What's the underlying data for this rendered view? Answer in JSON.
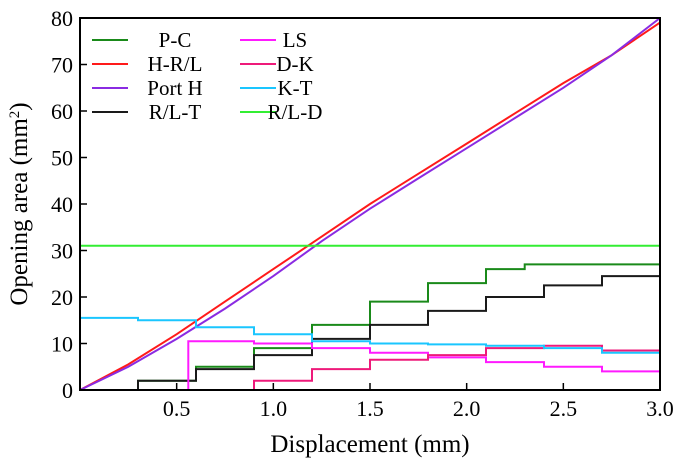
{
  "chart_data": {
    "type": "line",
    "xlabel": "Displacement (mm)",
    "ylabel_main": "Opening area (mm",
    "ylabel_sup": "2",
    "ylabel_tail": ")",
    "xlim": [
      0,
      3.0
    ],
    "ylim": [
      0,
      80
    ],
    "x_ticks": [
      0.5,
      1.0,
      1.5,
      2.0,
      2.5,
      3.0
    ],
    "x_tick_labels": [
      "0.5",
      "1.0",
      "1.5",
      "2.0",
      "2.5",
      "3.0"
    ],
    "y_ticks": [
      0,
      10,
      20,
      30,
      40,
      50,
      60,
      70,
      80
    ],
    "y_tick_labels": [
      "0",
      "10",
      "20",
      "30",
      "40",
      "50",
      "60",
      "70",
      "80"
    ],
    "grid": false,
    "legend_placement": "top-left",
    "series": [
      {
        "name": "P-C",
        "color": "#1a8a1a",
        "step": true,
        "x": [
          0,
          0.3,
          0.6,
          0.9,
          1.2,
          1.5,
          1.8,
          2.1,
          2.3,
          2.6,
          3.0
        ],
        "y": [
          0,
          2,
          5,
          9,
          14,
          19,
          23,
          26,
          27,
          27,
          27
        ]
      },
      {
        "name": "H-R/L",
        "color": "#ff1a1a",
        "step": false,
        "x": [
          0,
          0.25,
          0.5,
          0.75,
          1.0,
          1.25,
          1.5,
          1.75,
          2.0,
          2.25,
          2.5,
          2.75,
          3.0
        ],
        "y": [
          0,
          5.5,
          12,
          19,
          26,
          33,
          40,
          46.5,
          53,
          59.5,
          66,
          72,
          79
        ]
      },
      {
        "name": "Port H",
        "color": "#8a2be2",
        "step": false,
        "x": [
          0,
          0.25,
          0.5,
          0.75,
          1.0,
          1.25,
          1.5,
          1.75,
          2.0,
          2.25,
          2.5,
          2.75,
          3.0
        ],
        "y": [
          0,
          5,
          11,
          17.5,
          24.5,
          32,
          39,
          45.5,
          52,
          58.5,
          65,
          72,
          80
        ]
      },
      {
        "name": "R/L-T",
        "color": "#1a1a1a",
        "step": true,
        "x": [
          0,
          0.3,
          0.6,
          0.9,
          1.2,
          1.5,
          1.8,
          2.1,
          2.4,
          2.7,
          3.0
        ],
        "y": [
          0,
          2,
          4.5,
          7.5,
          11,
          14,
          17,
          20,
          22.5,
          24.5,
          26.5
        ]
      },
      {
        "name": "LS",
        "color": "#ff1aff",
        "step": true,
        "x": [
          0,
          0.55,
          0.56,
          0.6,
          0.9,
          1.2,
          1.5,
          1.8,
          2.1,
          2.4,
          2.7,
          3.0
        ],
        "y": [
          0,
          0,
          10.5,
          10.5,
          10,
          9,
          8,
          7,
          6,
          5,
          4,
          1.5
        ]
      },
      {
        "name": "D-K",
        "color": "#ee1a7a",
        "step": true,
        "x": [
          0,
          0.6,
          0.9,
          1.2,
          1.5,
          1.8,
          2.1,
          2.4,
          2.7,
          3.0
        ],
        "y": [
          0,
          0,
          2,
          4.5,
          6.5,
          7.5,
          9,
          9.5,
          8.5,
          6.5
        ]
      },
      {
        "name": "K-T",
        "color": "#1ac6ff",
        "step": true,
        "x": [
          0,
          0.3,
          0.6,
          0.9,
          1.2,
          1.5,
          1.8,
          2.1,
          2.4,
          2.7,
          3.0
        ],
        "y": [
          15.5,
          15,
          13.5,
          12,
          10.5,
          10,
          9.8,
          9.5,
          9,
          8,
          6.5
        ]
      },
      {
        "name": "R/L-D",
        "color": "#33ee33",
        "step": false,
        "x": [
          0,
          3.0
        ],
        "y": [
          31,
          31
        ]
      }
    ]
  }
}
